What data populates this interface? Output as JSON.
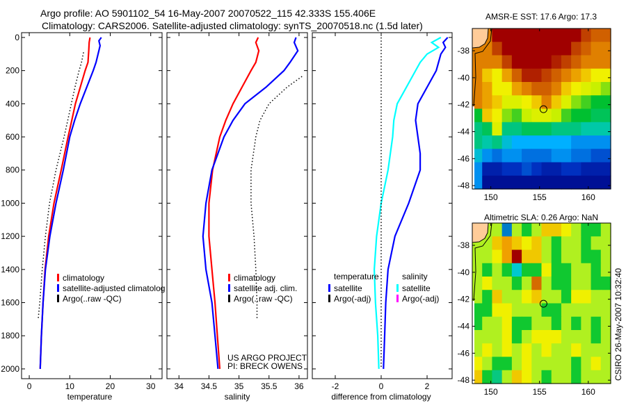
{
  "title": {
    "line1": "Argo profile: AO 5901102_54 16-May-2007 20070522_115 42.333S 155.406E",
    "line2": "Climatology: CARS2006. Satellite-adjusted climatology: synTS_20070518.nc (1.5d later)"
  },
  "credits": {
    "project": "US ARGO PROJECT",
    "pi": "PI: BRECK OWENS",
    "stamp": "CSIRO 26-May-2007 10:32:40"
  },
  "colors": {
    "red": "#ff0000",
    "blue": "#0000ff",
    "cyan": "#00ffff",
    "magenta": "#ff00ff",
    "black": "#000000",
    "land": "#ffcc99"
  },
  "chart_data": [
    {
      "type": "line",
      "id": "temperature",
      "xlabel": "temperature",
      "ylabel": "",
      "xlim": [
        -1.9,
        32.8
      ],
      "ylim": [
        2059,
        -29
      ],
      "xticks": [
        0,
        10,
        20,
        30
      ],
      "yticks": [
        0,
        200,
        400,
        600,
        800,
        1000,
        1200,
        1400,
        1600,
        1800,
        2000
      ],
      "legend": [
        {
          "label": "climatology",
          "color": "#ff0000"
        },
        {
          "label": "satellite-adjusted climatolog",
          "color": "#0000ff"
        },
        {
          "label": "Argo(..raw -QC)",
          "color": "#000000"
        }
      ],
      "series": [
        {
          "name": "climatology",
          "color": "#ff0000",
          "style": "solid",
          "depth": [
            0,
            30,
            80,
            150,
            200,
            300,
            400,
            500,
            600,
            800,
            1000,
            1200,
            1400,
            1600,
            1800,
            2000
          ],
          "values": [
            15,
            14.8,
            14.7,
            14.5,
            13.8,
            12.6,
            11.4,
            10.5,
            9.6,
            7.9,
            6.1,
            4.8,
            3.9,
            3.4,
            3.0,
            2.7
          ]
        },
        {
          "name": "satellite-adjusted climatology",
          "color": "#0000ff",
          "style": "solid",
          "depth": [
            0,
            20,
            50,
            100,
            150,
            200,
            300,
            400,
            500,
            600,
            800,
            1000,
            1200,
            1400,
            1600,
            1800,
            2000
          ],
          "values": [
            17.8,
            17.2,
            17.5,
            17.0,
            16.5,
            15.8,
            14.2,
            12.6,
            11.2,
            10.0,
            8.4,
            6.6,
            5.1,
            4.0,
            3.4,
            3.0,
            2.7
          ]
        },
        {
          "name": "Argo(..raw -QC)",
          "color": "#000000",
          "style": "dotted",
          "depth": [
            90,
            150,
            200,
            300,
            400,
            500,
            600,
            800,
            1000,
            1200,
            1400,
            1600,
            1700
          ],
          "values": [
            13.4,
            12.9,
            12.3,
            11.3,
            10.4,
            9.5,
            8.6,
            6.6,
            5.0,
            4.0,
            3.2,
            2.6,
            2.2
          ]
        }
      ]
    },
    {
      "type": "line",
      "id": "salinity",
      "xlabel": "salinity",
      "xlim": [
        33.8,
        36.14
      ],
      "ylim": [
        2059,
        -29
      ],
      "xticks": [
        34,
        34.5,
        35,
        35.5,
        36
      ],
      "xtick_labels": [
        "34",
        "34.5",
        "35",
        "35.5",
        "36"
      ],
      "legend": [
        {
          "label": "climatology",
          "color": "#ff0000"
        },
        {
          "label": "satellite adj. clim.",
          "color": "#0000ff"
        },
        {
          "label": "Argo(..raw -QC)",
          "color": "#000000"
        }
      ],
      "series": [
        {
          "name": "climatology",
          "color": "#ff0000",
          "style": "solid",
          "depth": [
            0,
            30,
            80,
            150,
            200,
            300,
            400,
            500,
            600,
            800,
            1000,
            1200,
            1400,
            1600,
            1800,
            2000
          ],
          "values": [
            35.32,
            35.28,
            35.33,
            35.28,
            35.2,
            35.05,
            34.9,
            34.78,
            34.68,
            34.56,
            34.5,
            34.5,
            34.55,
            34.6,
            34.64,
            34.68
          ]
        },
        {
          "name": "satellite adj. clim.",
          "color": "#0000ff",
          "style": "solid",
          "depth": [
            0,
            30,
            80,
            150,
            200,
            300,
            400,
            500,
            600,
            800,
            1000,
            1200,
            1400,
            1600,
            1800,
            2000
          ],
          "values": [
            35.95,
            35.92,
            35.98,
            35.85,
            35.75,
            35.45,
            35.1,
            34.9,
            34.75,
            34.55,
            34.45,
            34.4,
            34.45,
            34.55,
            34.6,
            34.65
          ]
        },
        {
          "name": "Argo(..raw -QC)",
          "color": "#000000",
          "style": "dotted",
          "depth": [
            235,
            300,
            400,
            500,
            600,
            800,
            1000,
            1200,
            1400,
            1600,
            1700
          ],
          "values": [
            36.05,
            35.8,
            35.5,
            35.35,
            35.28,
            35.2,
            35.2,
            35.25,
            35.28,
            35.3,
            35.3
          ]
        }
      ]
    },
    {
      "type": "line",
      "id": "difference",
      "xlabel": "difference from climatology",
      "xlim": [
        -3.0,
        3.09
      ],
      "ylim": [
        2059,
        -29
      ],
      "xticks": [
        -2,
        0,
        2
      ],
      "legend_headers": [
        "temperature",
        "salinity"
      ],
      "legend": [
        {
          "group": "temperature",
          "label": "satellite",
          "color": "#0000ff"
        },
        {
          "group": "temperature",
          "label": "Argo(-adj)",
          "color": "#000000"
        },
        {
          "group": "salinity",
          "label": "satellite",
          "color": "#00ffff"
        },
        {
          "group": "salinity",
          "label": "Argo(-adj)",
          "color": "#ff00ff"
        }
      ],
      "series": [
        {
          "name": "cyan difference",
          "color": "#00ffff",
          "style": "solid",
          "depth": [
            0,
            30,
            60,
            100,
            150,
            200,
            300,
            400,
            500,
            600,
            800,
            1000,
            1200,
            1400,
            1600,
            1800,
            2000
          ],
          "values": [
            2.6,
            2.2,
            2.5,
            2.0,
            1.7,
            1.5,
            1.1,
            0.7,
            0.55,
            0.5,
            0.3,
            0.0,
            -0.2,
            -0.3,
            -0.25,
            -0.15,
            -0.1
          ]
        },
        {
          "name": "blue difference",
          "color": "#0000ff",
          "style": "solid",
          "depth": [
            0,
            30,
            60,
            100,
            150,
            200,
            300,
            400,
            500,
            600,
            700,
            800,
            1000,
            1200,
            1400,
            1600,
            1800,
            2000
          ],
          "values": [
            2.9,
            2.7,
            2.8,
            2.6,
            2.5,
            2.4,
            2.0,
            1.6,
            1.5,
            1.6,
            1.7,
            1.7,
            1.2,
            0.6,
            0.3,
            0.2,
            0.15,
            0.1
          ]
        },
        {
          "name": "zero line",
          "color": "#000000",
          "style": "dotted",
          "depth": [
            0,
            2000
          ],
          "values": [
            0,
            0
          ]
        }
      ]
    },
    {
      "type": "heatmap",
      "id": "sst-map",
      "title": "AMSR-E SST: 17.6 Argo: 17.3",
      "lon_range": [
        148.1,
        162.3
      ],
      "lat_range": [
        -36.35,
        -48.25
      ],
      "xticks": [
        150,
        155,
        160
      ],
      "yticks": [
        -38,
        -40,
        -42,
        -44,
        -46,
        -48
      ],
      "marker": {
        "lon": 155.406,
        "lat": -42.333
      },
      "colormap": [
        [
          8,
          "#000080"
        ],
        [
          9.5,
          "#0030c0"
        ],
        [
          10.5,
          "#0070e0"
        ],
        [
          11.5,
          "#00b0ff"
        ],
        [
          12.5,
          "#00c8a8"
        ],
        [
          14,
          "#00c030"
        ],
        [
          15.5,
          "#c8f000"
        ],
        [
          16.5,
          "#f0f000"
        ],
        [
          17.3,
          "#f0b000"
        ],
        [
          18,
          "#e08000"
        ],
        [
          19,
          "#c04000"
        ],
        [
          20,
          "#a00000"
        ]
      ],
      "grid": [
        [
          18,
          18,
          20,
          20,
          20,
          20,
          20,
          20,
          20,
          20,
          20,
          19,
          18.5,
          18.5
        ],
        [
          18,
          18,
          19,
          20,
          20,
          20,
          20,
          20,
          20,
          20,
          19,
          18.5,
          18,
          18
        ],
        [
          18,
          18,
          18,
          19,
          20,
          20,
          20,
          20,
          19.5,
          19,
          18.5,
          18,
          18,
          18
        ],
        [
          18,
          17,
          16.5,
          17.5,
          18.5,
          19.5,
          19.5,
          19,
          18.5,
          18,
          17.5,
          17,
          16.5,
          16.5
        ],
        [
          18,
          17.5,
          16.5,
          16.5,
          17.5,
          18,
          18.5,
          18.5,
          18,
          17,
          16.5,
          16,
          15.5,
          15
        ],
        [
          18,
          17.5,
          17,
          16,
          16,
          16.5,
          17,
          18,
          17,
          16,
          15,
          14.5,
          14,
          14
        ],
        [
          14,
          17,
          16.5,
          15,
          14.5,
          15.5,
          16,
          16,
          15.5,
          14.5,
          14,
          14,
          13.5,
          13.5
        ],
        [
          13,
          13.5,
          16,
          13,
          13,
          13.5,
          13.5,
          13.5,
          13,
          13,
          13,
          12.5,
          12.5,
          12.5
        ],
        [
          13,
          12.5,
          13,
          12,
          11.5,
          11.5,
          11.5,
          11.5,
          11.5,
          11.5,
          11,
          11,
          11,
          11
        ],
        [
          12,
          11,
          10.5,
          11,
          11,
          10.5,
          10.5,
          10.5,
          11,
          11,
          10.5,
          10.5,
          10,
          10
        ],
        [
          11,
          9,
          9,
          9.5,
          9.5,
          10,
          9.5,
          9,
          9,
          9.5,
          9.5,
          9,
          9,
          9
        ],
        [
          11,
          8.5,
          8.5,
          8.5,
          8.5,
          8.5,
          8.5,
          8.5,
          8.5,
          8.5,
          8.5,
          8.5,
          8.5,
          8.5
        ]
      ]
    },
    {
      "type": "heatmap",
      "id": "sla-map",
      "title": "Altimetric SLA: 0.26 Argo: NaN",
      "lon_range": [
        148.1,
        162.3
      ],
      "lat_range": [
        -36.35,
        -48.25
      ],
      "xticks": [
        150,
        155,
        160
      ],
      "yticks": [
        -38,
        -40,
        -42,
        -44,
        -46,
        -48
      ],
      "marker": {
        "lon": 155.406,
        "lat": -42.333
      },
      "colormap": [
        [
          -0.25,
          "#0030c0"
        ],
        [
          -0.15,
          "#00c8d0"
        ],
        [
          -0.05,
          "#10c830"
        ],
        [
          0.05,
          "#b0f020"
        ],
        [
          0.1,
          "#f0f000"
        ],
        [
          0.2,
          "#f0a000"
        ],
        [
          0.35,
          "#a00000"
        ]
      ],
      "grid": [
        [
          0.05,
          0.05,
          0.05,
          -0.2,
          0.05,
          -0.05,
          0.05,
          0.15,
          0.15,
          0.1,
          0.05,
          -0.05,
          -0.05,
          0.05
        ],
        [
          0.05,
          0.05,
          0.15,
          0.2,
          0.15,
          0.1,
          0.15,
          0.05,
          -0.05,
          0.05,
          0.05,
          -0.05,
          0.05,
          0.05
        ],
        [
          0.05,
          0.05,
          0.1,
          0.2,
          0.35,
          0.15,
          0.15,
          0.05,
          -0.05,
          0.05,
          0.05,
          -0.05,
          -0.05,
          0.05
        ],
        [
          0.05,
          -0.05,
          0.05,
          -0.05,
          -0.15,
          -0.05,
          -0.05,
          0.1,
          -0.05,
          -0.05,
          0.05,
          0.05,
          -0.05,
          0.05
        ],
        [
          0.05,
          0.1,
          0.05,
          0.05,
          -0.05,
          0.05,
          0.25,
          0.05,
          -0.05,
          -0.05,
          0.05,
          0.05,
          -0.05,
          -0.05
        ],
        [
          0.05,
          -0.05,
          0.15,
          0.05,
          0.05,
          0.1,
          0.15,
          0.05,
          0.05,
          -0.05,
          0.1,
          0.1,
          0.05,
          0.05
        ],
        [
          -0.05,
          -0.05,
          0.1,
          0.1,
          0.05,
          0.05,
          0.05,
          -0.05,
          -0.05,
          0.05,
          0.05,
          0.05,
          0.05,
          0.05
        ],
        [
          -0.05,
          0.05,
          0.05,
          0.1,
          -0.05,
          -0.05,
          0.05,
          0.05,
          -0.05,
          0.05,
          -0.05,
          0.05,
          -0.05,
          0.05
        ],
        [
          0.05,
          0.05,
          0.05,
          0.1,
          -0.05,
          0.05,
          0.1,
          0.1,
          0.1,
          0.05,
          0.05,
          0.05,
          -0.05,
          0.05
        ],
        [
          0.05,
          0.1,
          0.05,
          0.1,
          0.05,
          0.1,
          0.05,
          0.1,
          0.05,
          0.05,
          0.1,
          0.05,
          0.05,
          0.05
        ],
        [
          0.1,
          0.05,
          -0.05,
          -0.05,
          0.05,
          0.1,
          0.05,
          0.05,
          0.05,
          0.05,
          -0.05,
          0.05,
          0.1,
          0.05
        ],
        [
          0.15,
          -0.05,
          -0.1,
          0.05,
          0.15,
          0.1,
          0.05,
          -0.05,
          0.05,
          0.05,
          -0.05,
          0.05,
          0.05,
          0.05
        ]
      ]
    }
  ]
}
